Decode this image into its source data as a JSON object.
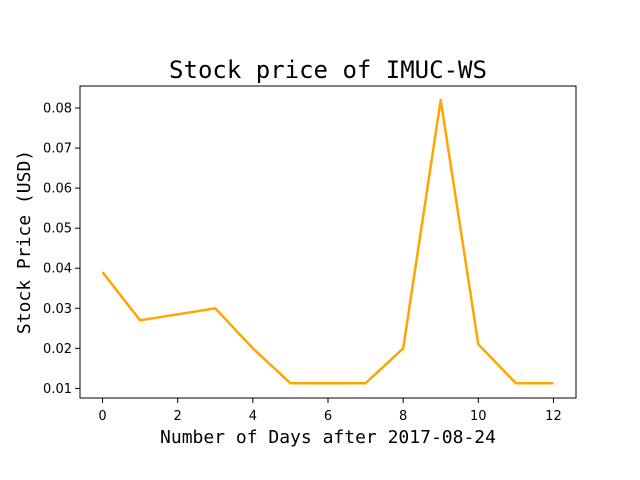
{
  "chart_data": {
    "type": "line",
    "title": "Stock price of IMUC-WS",
    "xlabel": "Number of Days after 2017-08-24",
    "ylabel": "Stock Price (USD)",
    "xlim": [
      -0.6,
      12.6
    ],
    "ylim": [
      0.0076,
      0.0855
    ],
    "xticks": [
      0,
      2,
      4,
      6,
      8,
      10,
      12
    ],
    "yticks": [
      0.01,
      0.02,
      0.03,
      0.04,
      0.05,
      0.06,
      0.07,
      0.08
    ],
    "xtick_labels": [
      "0",
      "2",
      "4",
      "6",
      "8",
      "10",
      "12"
    ],
    "ytick_labels": [
      "0.01",
      "0.02",
      "0.03",
      "0.04",
      "0.05",
      "0.06",
      "0.07",
      "0.08"
    ],
    "grid": false,
    "series": [
      {
        "color": "#FFA500",
        "x": [
          0,
          1,
          2,
          3,
          4,
          5,
          6,
          7,
          8,
          9,
          10,
          11,
          12
        ],
        "y": [
          0.039,
          0.027,
          0.0285,
          0.03,
          0.02,
          0.0113,
          0.0113,
          0.0113,
          0.02,
          0.082,
          0.021,
          0.0113,
          0.0113
        ]
      }
    ]
  }
}
